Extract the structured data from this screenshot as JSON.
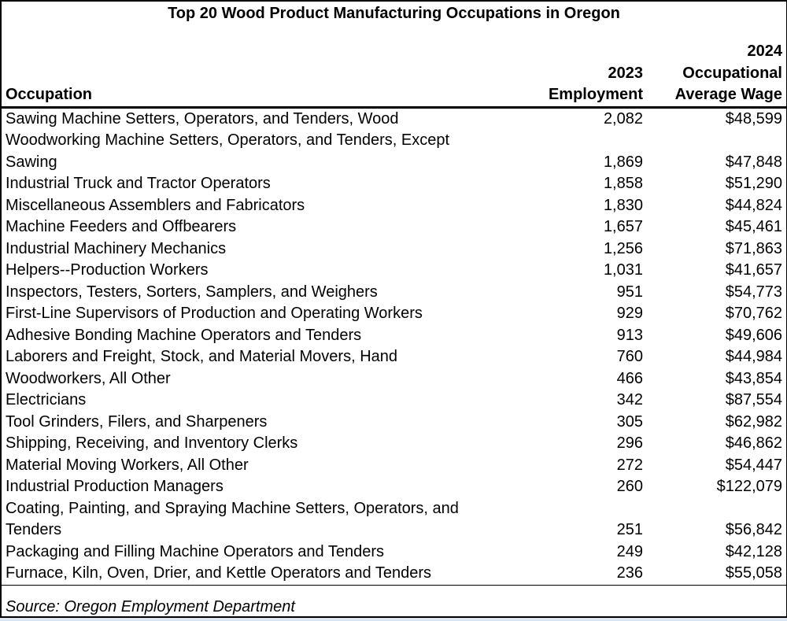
{
  "report": {
    "title": "Top 20 Wood Product Manufacturing Occupations in Oregon",
    "source": "Source: Oregon Employment Department",
    "table": {
      "header": {
        "occupation": "Occupation",
        "employment": "2023\nEmployment",
        "wage": "2024\nOccupational\nAverage Wage"
      },
      "rows": [
        {
          "occupation": "Sawing Machine Setters, Operators, and Tenders, Wood",
          "employment": "2,082",
          "wage": "$48,599"
        },
        {
          "occupation": "Woodworking Machine Setters, Operators, and Tenders, Except\nSawing",
          "employment": "1,869",
          "wage": "$47,848"
        },
        {
          "occupation": "Industrial Truck and Tractor Operators",
          "employment": "1,858",
          "wage": "$51,290"
        },
        {
          "occupation": "Miscellaneous Assemblers and Fabricators",
          "employment": "1,830",
          "wage": "$44,824"
        },
        {
          "occupation": "Machine Feeders and Offbearers",
          "employment": "1,657",
          "wage": "$45,461"
        },
        {
          "occupation": "Industrial Machinery Mechanics",
          "employment": "1,256",
          "wage": "$71,863"
        },
        {
          "occupation": "Helpers--Production Workers",
          "employment": "1,031",
          "wage": "$41,657"
        },
        {
          "occupation": "Inspectors, Testers, Sorters, Samplers, and Weighers",
          "employment": "951",
          "wage": "$54,773"
        },
        {
          "occupation": "First-Line Supervisors of Production and Operating Workers",
          "employment": "929",
          "wage": "$70,762"
        },
        {
          "occupation": "Adhesive Bonding Machine Operators and Tenders",
          "employment": "913",
          "wage": "$49,606"
        },
        {
          "occupation": "Laborers and Freight, Stock, and Material Movers, Hand",
          "employment": "760",
          "wage": "$44,984"
        },
        {
          "occupation": "Woodworkers, All Other",
          "employment": "466",
          "wage": "$43,854"
        },
        {
          "occupation": "Electricians",
          "employment": "342",
          "wage": "$87,554"
        },
        {
          "occupation": "Tool Grinders, Filers, and Sharpeners",
          "employment": "305",
          "wage": "$62,982"
        },
        {
          "occupation": "Shipping, Receiving, and Inventory Clerks",
          "employment": "296",
          "wage": "$46,862"
        },
        {
          "occupation": "Material Moving Workers, All Other",
          "employment": "272",
          "wage": "$54,447"
        },
        {
          "occupation": "Industrial Production Managers",
          "employment": "260",
          "wage": "$122,079"
        },
        {
          "occupation": "Coating, Painting, and Spraying Machine Setters, Operators, and\nTenders",
          "employment": "251",
          "wage": "$56,842"
        },
        {
          "occupation": "Packaging and Filling Machine Operators and Tenders",
          "employment": "249",
          "wage": "$42,128"
        },
        {
          "occupation": "Furnace, Kiln, Oven, Drier, and Kettle Operators and Tenders",
          "employment": "236",
          "wage": "$55,058"
        }
      ]
    }
  }
}
